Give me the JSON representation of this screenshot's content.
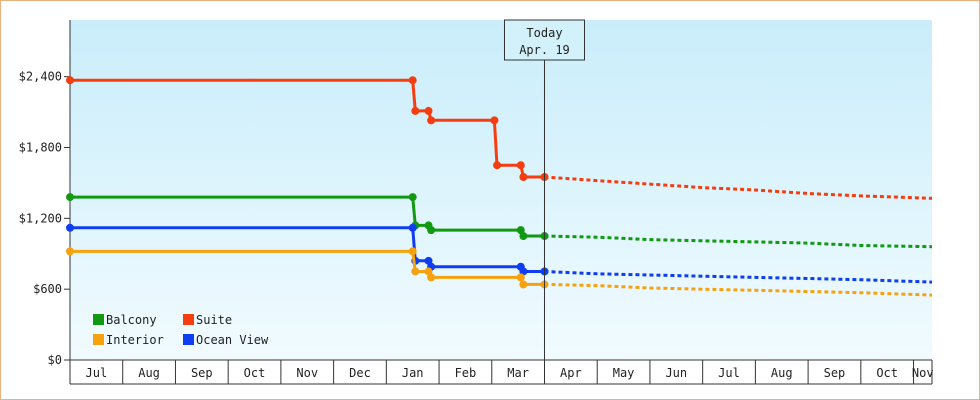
{
  "chart_data": {
    "type": "line",
    "xlabel": "",
    "ylabel": "",
    "ylim": [
      0,
      2880
    ],
    "y_ticks": [
      0,
      600,
      1200,
      1800,
      2400
    ],
    "y_tick_labels": [
      "$0",
      "$600",
      "$1,200",
      "$1,800",
      "$2,400"
    ],
    "x_tick_labels": [
      "Jul",
      "Aug",
      "Sep",
      "Oct",
      "Nov",
      "Dec",
      "Jan",
      "Feb",
      "Mar",
      "Apr",
      "May",
      "Jun",
      "Jul",
      "Aug",
      "Sep",
      "Oct",
      "Nov"
    ],
    "x_range": [
      0,
      16.35
    ],
    "today_x": 9.0,
    "today_label": [
      "Today",
      "Apr. 19"
    ],
    "legend": {
      "placement": "bottom-left",
      "items": [
        {
          "label": "Balcony",
          "color": "#119911"
        },
        {
          "label": "Suite",
          "color": "#f53d10"
        },
        {
          "label": "Interior",
          "color": "#f6a20e"
        },
        {
          "label": "Ocean View",
          "color": "#0f3ef2"
        }
      ]
    },
    "series": [
      {
        "name": "Suite",
        "color": "#f53d10",
        "history": [
          [
            0,
            2370
          ],
          [
            6.5,
            2370
          ],
          [
            6.55,
            2110
          ],
          [
            6.8,
            2110
          ],
          [
            6.85,
            2030
          ],
          [
            8.05,
            2030
          ],
          [
            8.1,
            1650
          ],
          [
            8.55,
            1650
          ],
          [
            8.6,
            1550
          ],
          [
            9.0,
            1550
          ]
        ],
        "points": [
          [
            0,
            2370
          ],
          [
            6.5,
            2370
          ],
          [
            6.55,
            2110
          ],
          [
            6.8,
            2110
          ],
          [
            6.85,
            2030
          ],
          [
            8.05,
            2030
          ],
          [
            8.1,
            1650
          ],
          [
            8.55,
            1650
          ],
          [
            8.6,
            1550
          ],
          [
            9.0,
            1550
          ]
        ],
        "forecast": [
          [
            9.0,
            1550
          ],
          [
            10.0,
            1520
          ],
          [
            11.0,
            1490
          ],
          [
            12.0,
            1460
          ],
          [
            13.0,
            1440
          ],
          [
            14.0,
            1410
          ],
          [
            15.0,
            1390
          ],
          [
            16.35,
            1370
          ]
        ]
      },
      {
        "name": "Balcony",
        "color": "#119911",
        "history": [
          [
            0,
            1380
          ],
          [
            6.5,
            1380
          ],
          [
            6.55,
            1140
          ],
          [
            6.8,
            1140
          ],
          [
            6.85,
            1100
          ],
          [
            8.55,
            1100
          ],
          [
            8.6,
            1050
          ],
          [
            9.0,
            1050
          ]
        ],
        "points": [
          [
            0,
            1380
          ],
          [
            6.5,
            1380
          ],
          [
            6.55,
            1140
          ],
          [
            6.8,
            1140
          ],
          [
            6.85,
            1100
          ],
          [
            8.55,
            1100
          ],
          [
            8.6,
            1050
          ],
          [
            9.0,
            1050
          ]
        ],
        "forecast": [
          [
            9.0,
            1050
          ],
          [
            10.0,
            1040
          ],
          [
            11.0,
            1020
          ],
          [
            12.0,
            1010
          ],
          [
            13.0,
            1000
          ],
          [
            14.0,
            990
          ],
          [
            15.0,
            970
          ],
          [
            16.35,
            960
          ]
        ]
      },
      {
        "name": "Ocean View",
        "color": "#0f3ef2",
        "history": [
          [
            0,
            1120
          ],
          [
            6.5,
            1120
          ],
          [
            6.55,
            840
          ],
          [
            6.8,
            840
          ],
          [
            6.85,
            790
          ],
          [
            8.55,
            790
          ],
          [
            8.6,
            750
          ],
          [
            9.0,
            750
          ]
        ],
        "points": [
          [
            0,
            1120
          ],
          [
            6.5,
            1120
          ],
          [
            6.55,
            840
          ],
          [
            6.8,
            840
          ],
          [
            6.85,
            790
          ],
          [
            8.55,
            790
          ],
          [
            8.6,
            750
          ],
          [
            9.0,
            750
          ]
        ],
        "forecast": [
          [
            9.0,
            750
          ],
          [
            10.0,
            730
          ],
          [
            11.0,
            720
          ],
          [
            12.0,
            710
          ],
          [
            13.0,
            700
          ],
          [
            14.0,
            690
          ],
          [
            15.0,
            680
          ],
          [
            16.35,
            660
          ]
        ]
      },
      {
        "name": "Interior",
        "color": "#f6a20e",
        "history": [
          [
            0,
            920
          ],
          [
            6.5,
            920
          ],
          [
            6.55,
            750
          ],
          [
            6.8,
            750
          ],
          [
            6.85,
            700
          ],
          [
            8.55,
            700
          ],
          [
            8.6,
            640
          ],
          [
            9.0,
            640
          ]
        ],
        "points": [
          [
            0,
            920
          ],
          [
            6.5,
            920
          ],
          [
            6.55,
            750
          ],
          [
            6.8,
            750
          ],
          [
            6.85,
            700
          ],
          [
            8.55,
            700
          ],
          [
            8.6,
            640
          ],
          [
            9.0,
            640
          ]
        ],
        "forecast": [
          [
            9.0,
            640
          ],
          [
            10.0,
            630
          ],
          [
            11.0,
            610
          ],
          [
            12.0,
            600
          ],
          [
            13.0,
            590
          ],
          [
            14.0,
            580
          ],
          [
            15.0,
            570
          ],
          [
            16.35,
            550
          ]
        ]
      }
    ]
  }
}
